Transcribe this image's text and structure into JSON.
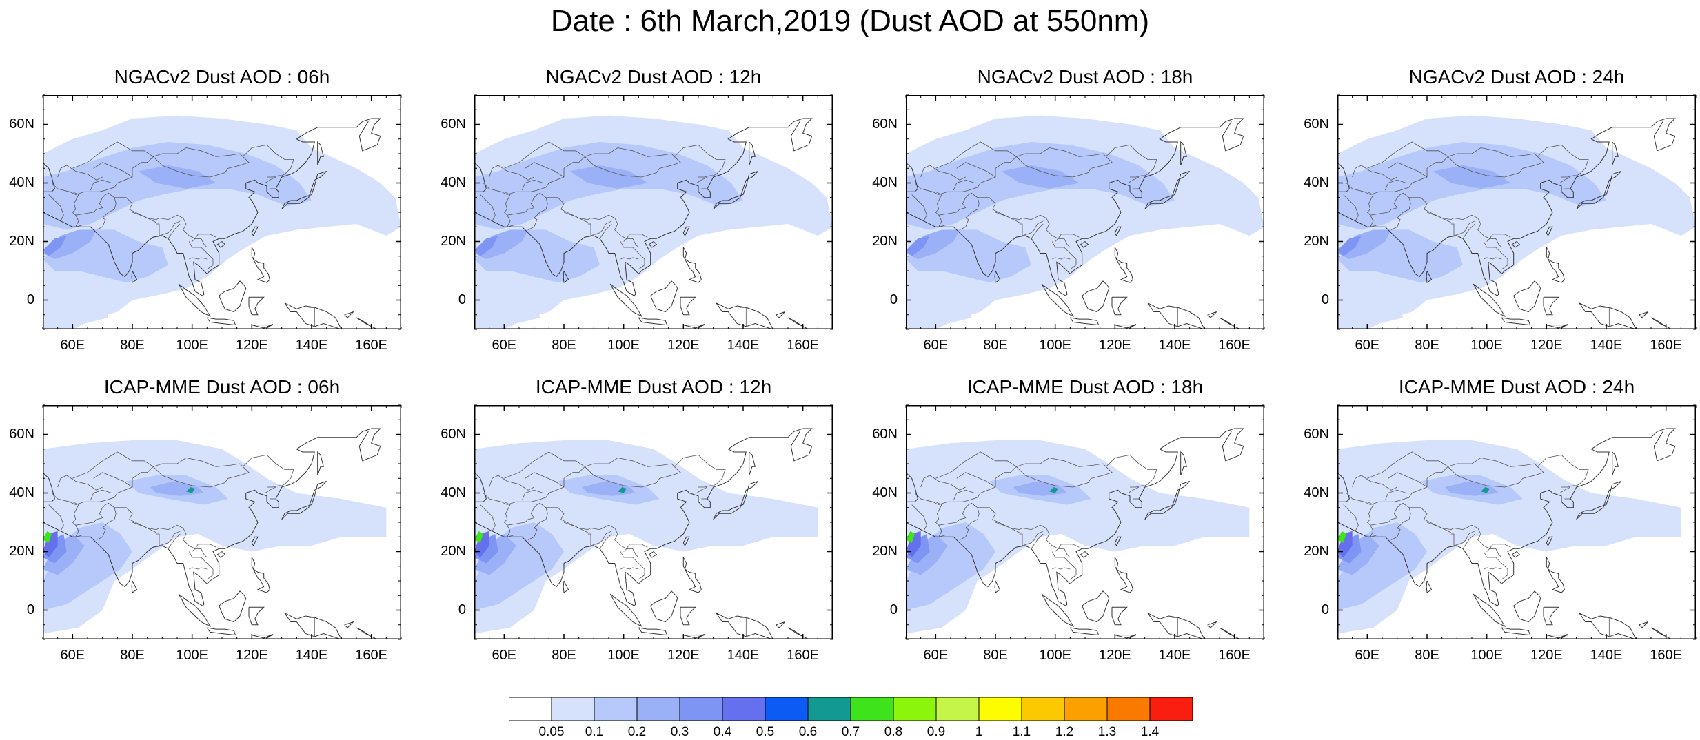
{
  "title": "Date : 6th March,2019 (Dust AOD at 550nm)",
  "panels": [
    {
      "title": "NGACv2 Dust AOD : 06h",
      "model": "ngac"
    },
    {
      "title": "NGACv2 Dust AOD : 12h",
      "model": "ngac"
    },
    {
      "title": "NGACv2 Dust AOD : 18h",
      "model": "ngac"
    },
    {
      "title": "NGACv2 Dust AOD : 24h",
      "model": "ngac"
    },
    {
      "title": "ICAP-MME Dust AOD : 06h",
      "model": "icap"
    },
    {
      "title": "ICAP-MME Dust AOD : 12h",
      "model": "icap"
    },
    {
      "title": "ICAP-MME Dust AOD : 18h",
      "model": "icap"
    },
    {
      "title": "ICAP-MME Dust AOD : 24h",
      "model": "icap"
    }
  ],
  "axes": {
    "lat_ticks": [
      "60N",
      "40N",
      "20N",
      "0"
    ],
    "lon_ticks": [
      "60E",
      "80E",
      "100E",
      "120E",
      "140E",
      "160E"
    ],
    "lat_range": [
      -10,
      70
    ],
    "lon_range": [
      50,
      170
    ]
  },
  "colorbar": {
    "labels": [
      "0.05",
      "0.1",
      "0.2",
      "0.3",
      "0.4",
      "0.5",
      "0.6",
      "0.7",
      "0.8",
      "0.9",
      "1",
      "1.1",
      "1.2",
      "1.3",
      "1.4"
    ],
    "colors": [
      "#ffffff",
      "#d6e1fc",
      "#b7c8fa",
      "#9ab0f7",
      "#7f95f3",
      "#6470ee",
      "#0d5bf5",
      "#129a92",
      "#3fe31b",
      "#8cf50c",
      "#c4f548",
      "#fdfd00",
      "#fcc800",
      "#fca000",
      "#fa7a00",
      "#f91e0f"
    ]
  }
}
